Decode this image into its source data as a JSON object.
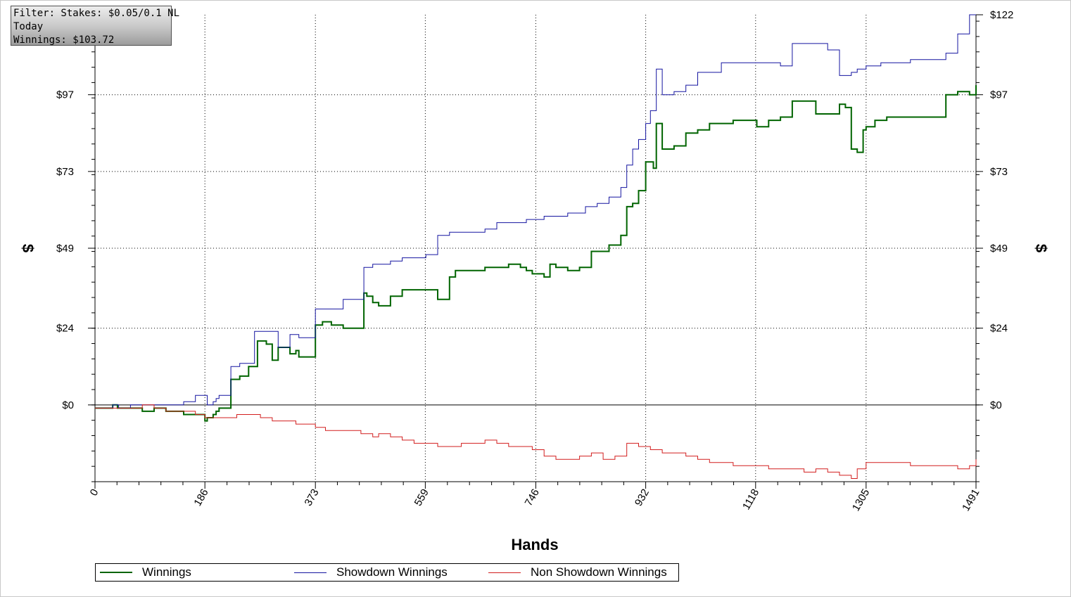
{
  "filter": {
    "line1": "Filter: Stakes: $0.05/0.1 NL",
    "line2": "Today",
    "line3": "Winnings: $103.72"
  },
  "colors": {
    "winnings": "#006400",
    "showdown": "#1414a0",
    "non_showdown": "#d21e1e",
    "grid": "#000000",
    "zero_line": "#000000"
  },
  "chart_data": {
    "type": "line",
    "xlabel": "Hands",
    "ylabel_left": "$",
    "ylabel_right": "$",
    "xlim": [
      0,
      1491
    ],
    "ylim": [
      -24,
      122
    ],
    "x_ticks": [
      0,
      186,
      373,
      559,
      746,
      932,
      1118,
      1305,
      1491
    ],
    "x_tick_labels": [
      "0",
      "186",
      "373",
      "559",
      "746",
      "932",
      "1118",
      "1305",
      "1491"
    ],
    "y_ticks": [
      0,
      24,
      49,
      73,
      97,
      122
    ],
    "y_tick_labels": [
      "$0",
      "$24",
      "$49",
      "$73",
      "$97",
      "$122"
    ],
    "y_tick_labels_left": [
      "$0",
      "$24",
      "$49",
      "$73",
      "$97"
    ],
    "y_tick_labels_right": [
      "$0",
      "$24",
      "$49",
      "$73",
      "$97",
      "$122"
    ],
    "grid": true,
    "legend_position": "bottom",
    "series": [
      {
        "name": "Winnings",
        "x": [
          0,
          20,
          30,
          38,
          50,
          60,
          80,
          100,
          120,
          150,
          160,
          170,
          186,
          190,
          200,
          205,
          210,
          230,
          245,
          260,
          275,
          290,
          300,
          310,
          330,
          340,
          345,
          360,
          373,
          385,
          400,
          420,
          440,
          455,
          460,
          470,
          480,
          500,
          520,
          540,
          560,
          580,
          590,
          600,
          610,
          620,
          640,
          660,
          680,
          700,
          720,
          730,
          740,
          750,
          760,
          770,
          780,
          800,
          820,
          840,
          860,
          870,
          880,
          890,
          900,
          910,
          920,
          932,
          940,
          945,
          950,
          960,
          980,
          1000,
          1020,
          1040,
          1060,
          1080,
          1100,
          1120,
          1140,
          1160,
          1180,
          1200,
          1220,
          1240,
          1260,
          1270,
          1280,
          1290,
          1300,
          1305,
          1320,
          1340,
          1360,
          1380,
          1400,
          1420,
          1440,
          1460,
          1480,
          1491
        ],
        "y": [
          -1,
          -1,
          0,
          -1,
          -1,
          -1,
          -2,
          -1,
          -2,
          -3,
          -3,
          -3,
          -5,
          -4,
          -3,
          -2,
          -1,
          8,
          9,
          12,
          20,
          19,
          14,
          18,
          16,
          17,
          15,
          15,
          25,
          26,
          25,
          24,
          24,
          35,
          34,
          32,
          31,
          34,
          36,
          36,
          36,
          33,
          33,
          40,
          42,
          42,
          42,
          43,
          43,
          44,
          43,
          42,
          41,
          41,
          40,
          44,
          43,
          42,
          43,
          48,
          48,
          50,
          50,
          53,
          62,
          63,
          67,
          76,
          76,
          74,
          88,
          80,
          81,
          85,
          86,
          88,
          88,
          89,
          89,
          87,
          89,
          90,
          95,
          95,
          91,
          91,
          94,
          93,
          80,
          79,
          86,
          87,
          89,
          90,
          90,
          90,
          90,
          90,
          97,
          98,
          97,
          100
        ]
      },
      {
        "name": "Showdown Winnings",
        "x": [
          0,
          20,
          30,
          40,
          60,
          100,
          140,
          150,
          160,
          170,
          186,
          190,
          200,
          205,
          210,
          230,
          245,
          270,
          290,
          310,
          330,
          345,
          360,
          373,
          395,
          420,
          455,
          470,
          500,
          520,
          560,
          580,
          600,
          620,
          660,
          680,
          700,
          720,
          730,
          760,
          780,
          800,
          830,
          850,
          870,
          880,
          890,
          900,
          910,
          920,
          932,
          940,
          950,
          960,
          980,
          1000,
          1020,
          1040,
          1060,
          1080,
          1100,
          1120,
          1140,
          1160,
          1180,
          1200,
          1220,
          1240,
          1260,
          1280,
          1290,
          1305,
          1330,
          1360,
          1380,
          1400,
          1420,
          1440,
          1460,
          1480,
          1491
        ],
        "y": [
          -1,
          -1,
          0,
          -1,
          0,
          0,
          0,
          1,
          1,
          3,
          3,
          0,
          1,
          2,
          3,
          12,
          13,
          23,
          23,
          18,
          22,
          21,
          21,
          30,
          30,
          33,
          43,
          44,
          45,
          46,
          47,
          53,
          54,
          54,
          55,
          57,
          57,
          57,
          58,
          59,
          59,
          60,
          62,
          63,
          65,
          65,
          68,
          75,
          80,
          83,
          88,
          92,
          105,
          97,
          98,
          100,
          104,
          104,
          107,
          107,
          107,
          107,
          107,
          106,
          113,
          113,
          113,
          111,
          103,
          104,
          105,
          106,
          107,
          107,
          108,
          108,
          108,
          110,
          116,
          122,
          122
        ]
      },
      {
        "name": "Non Showdown Winnings",
        "x": [
          0,
          20,
          50,
          80,
          100,
          120,
          150,
          170,
          186,
          190,
          200,
          220,
          240,
          260,
          280,
          300,
          320,
          340,
          360,
          373,
          390,
          420,
          450,
          470,
          480,
          500,
          520,
          540,
          560,
          580,
          600,
          620,
          640,
          660,
          680,
          700,
          720,
          740,
          760,
          780,
          800,
          820,
          840,
          860,
          880,
          900,
          920,
          940,
          960,
          980,
          1000,
          1020,
          1040,
          1060,
          1080,
          1100,
          1120,
          1140,
          1160,
          1180,
          1200,
          1220,
          1240,
          1260,
          1280,
          1290,
          1305,
          1320,
          1340,
          1360,
          1380,
          1400,
          1420,
          1440,
          1460,
          1480,
          1491
        ],
        "y": [
          -1,
          -1,
          -1,
          0,
          -1,
          -2,
          -2,
          -3,
          -4,
          -4,
          -4,
          -4,
          -3,
          -3,
          -4,
          -5,
          -5,
          -6,
          -6,
          -7,
          -8,
          -8,
          -9,
          -10,
          -9,
          -10,
          -11,
          -12,
          -12,
          -13,
          -13,
          -12,
          -12,
          -11,
          -12,
          -13,
          -13,
          -14,
          -16,
          -17,
          -17,
          -16,
          -15,
          -17,
          -16,
          -12,
          -13,
          -14,
          -15,
          -15,
          -16,
          -17,
          -18,
          -18,
          -19,
          -19,
          -19,
          -20,
          -20,
          -20,
          -21,
          -20,
          -21,
          -22,
          -23,
          -20,
          -18,
          -18,
          -18,
          -18,
          -19,
          -19,
          -19,
          -19,
          -20,
          -19,
          -17
        ]
      }
    ]
  }
}
